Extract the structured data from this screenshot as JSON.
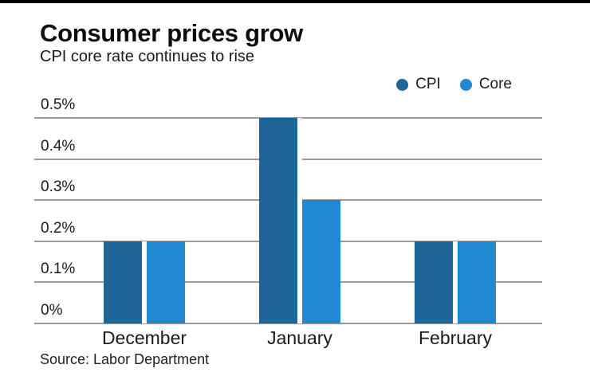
{
  "header": {
    "title": "Consumer prices grow",
    "subtitle": "CPI core rate continues to rise"
  },
  "legend": [
    {
      "label": "CPI",
      "color": "#1e6598"
    },
    {
      "label": "Core",
      "color": "#2187d0"
    }
  ],
  "chart_data": {
    "type": "bar",
    "title": "Consumer prices grow",
    "subtitle": "CPI core rate continues to rise",
    "categories": [
      "December",
      "January",
      "February"
    ],
    "series": [
      {
        "name": "CPI",
        "color": "#1e6598",
        "values": [
          0.2,
          0.5,
          0.2
        ]
      },
      {
        "name": "Core",
        "color": "#2187d0",
        "values": [
          0.2,
          0.3,
          0.2
        ]
      }
    ],
    "y_ticks": [
      {
        "value": 0.5,
        "label": "0.5%"
      },
      {
        "value": 0.4,
        "label": "0.4%"
      },
      {
        "value": 0.3,
        "label": "0.3%"
      },
      {
        "value": 0.2,
        "label": "0.2%"
      },
      {
        "value": 0.1,
        "label": "0.1%"
      },
      {
        "value": 0.0,
        "label": "0%"
      }
    ],
    "ylim": [
      0,
      0.5
    ],
    "grid": true,
    "legend_position": "top-right",
    "xlabel": "",
    "ylabel": ""
  },
  "source": "Source: Labor Department"
}
